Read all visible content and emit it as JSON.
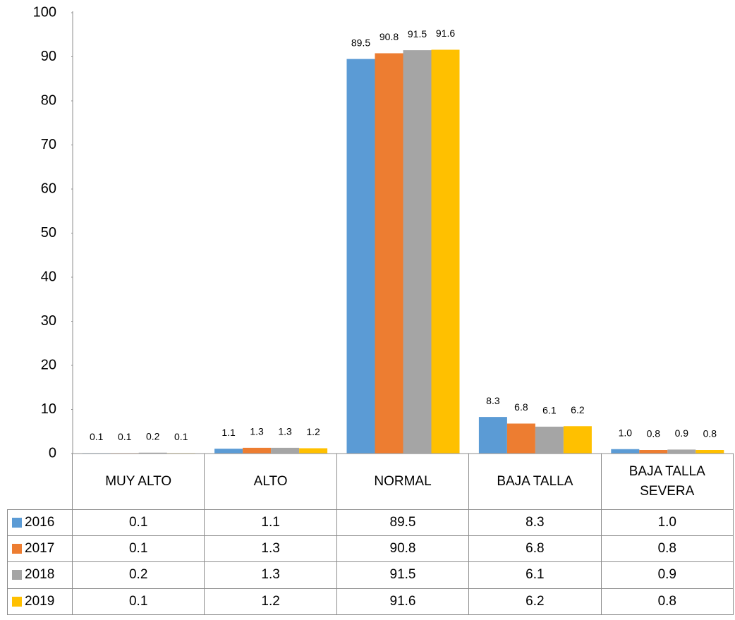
{
  "chart_data": {
    "type": "bar",
    "categories": [
      "MUY ALTO",
      "ALTO",
      "NORMAL",
      "BAJA TALLA",
      "BAJA TALLA SEVERA"
    ],
    "series": [
      {
        "name": "2016",
        "color": "#5b9bd5",
        "values": [
          0.1,
          1.1,
          89.5,
          8.3,
          1.0
        ],
        "value_labels": [
          "0.1",
          "1.1",
          "89.5",
          "8.3",
          "1.0"
        ]
      },
      {
        "name": "2017",
        "color": "#ed7d31",
        "values": [
          0.1,
          1.3,
          90.8,
          6.8,
          0.8
        ],
        "value_labels": [
          "0.1",
          "1.3",
          "90.8",
          "6.8",
          "0.8"
        ]
      },
      {
        "name": "2018",
        "color": "#a5a5a5",
        "values": [
          0.2,
          1.3,
          91.5,
          6.1,
          0.9
        ],
        "value_labels": [
          "0.2",
          "1.3",
          "91.5",
          "6.1",
          "0.9"
        ]
      },
      {
        "name": "2019",
        "color": "#ffc000",
        "values": [
          0.1,
          1.2,
          91.6,
          6.2,
          0.8
        ],
        "value_labels": [
          "0.1",
          "1.2",
          "91.6",
          "6.2",
          "0.8"
        ]
      }
    ],
    "ylim": [
      0,
      100
    ],
    "yticks": [
      0,
      10,
      20,
      30,
      40,
      50,
      60,
      70,
      80,
      90,
      100
    ],
    "grid": false
  }
}
